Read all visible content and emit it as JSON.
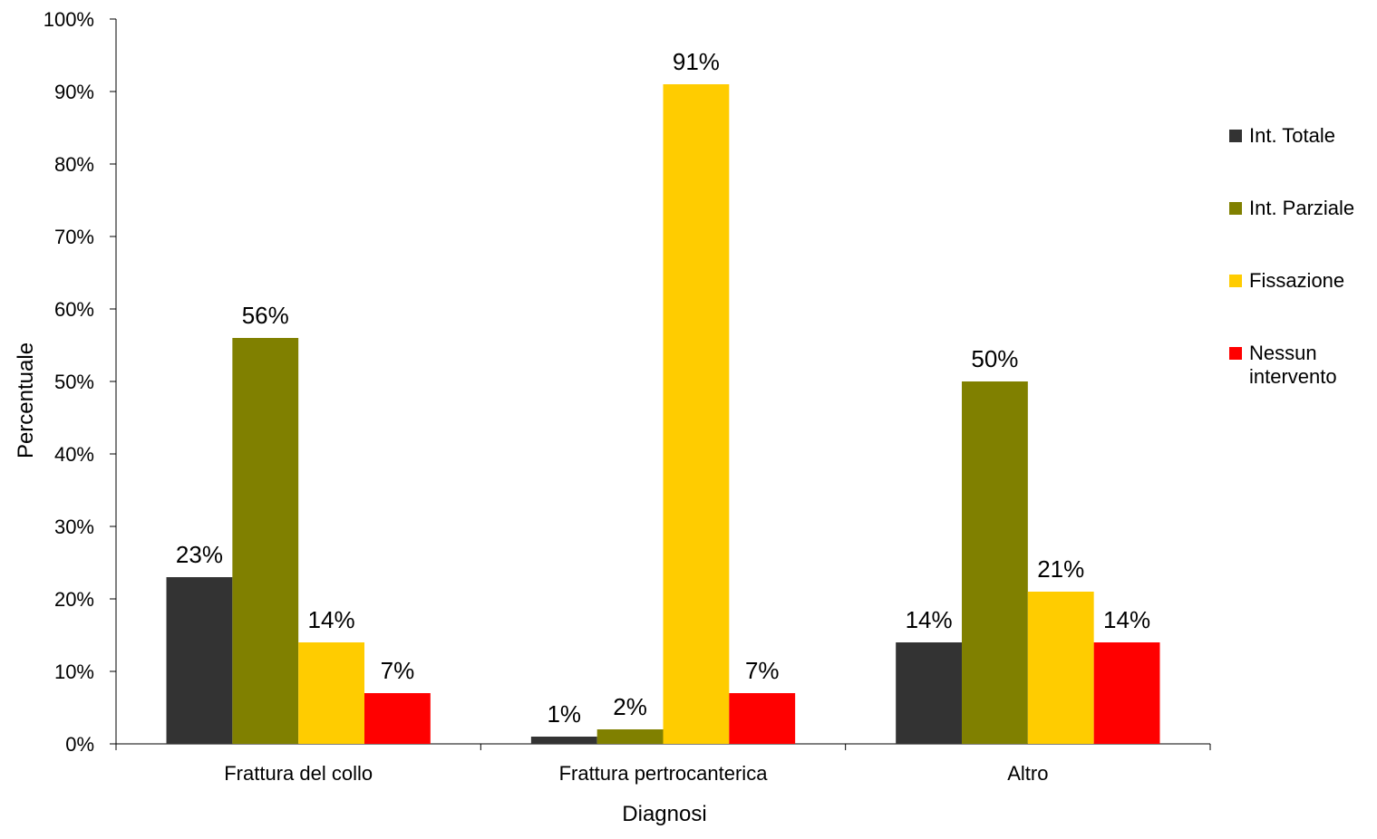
{
  "chart_data": {
    "type": "bar",
    "title": "",
    "xlabel": "Diagnosi",
    "ylabel": "Percentuale",
    "ylim": [
      0,
      100
    ],
    "y_ticks": [
      "0%",
      "10%",
      "20%",
      "30%",
      "40%",
      "50%",
      "60%",
      "70%",
      "80%",
      "90%",
      "100%"
    ],
    "grid": false,
    "legend_position": "right",
    "categories": [
      "Frattura del collo",
      "Frattura pertrocanterica",
      "Altro"
    ],
    "series": [
      {
        "name": "Int. Totale",
        "color": "#333333",
        "values": [
          23,
          1,
          14
        ],
        "labels": [
          "23%",
          "1%",
          "14%"
        ]
      },
      {
        "name": "Int. Parziale",
        "color": "#808000",
        "values": [
          56,
          2,
          50
        ],
        "labels": [
          "56%",
          "2%",
          "50%"
        ]
      },
      {
        "name": "Fissazione",
        "color": "#FFCC00",
        "values": [
          14,
          91,
          21
        ],
        "labels": [
          "14%",
          "91%",
          "21%"
        ]
      },
      {
        "name": "Nessun intervento",
        "color": "#FF0000",
        "values": [
          7,
          7,
          14
        ],
        "labels": [
          "7%",
          "7%",
          "14%"
        ]
      }
    ]
  }
}
